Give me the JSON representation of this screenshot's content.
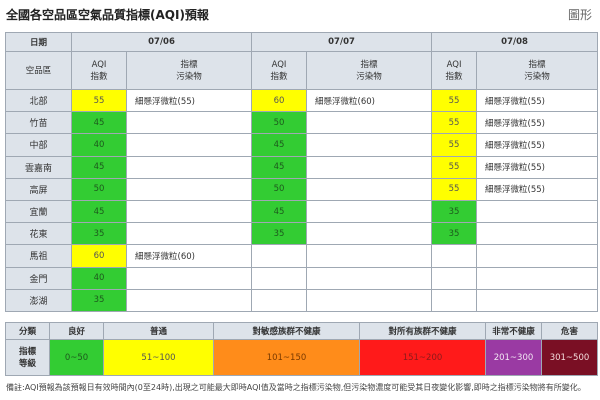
{
  "header": {
    "title": "全國各空品區空氣品質指標(AQI)預報",
    "chart_link": "圖形"
  },
  "table": {
    "date_label": "日期",
    "region_label": "空品區",
    "aqi_header": "AQI\n指數",
    "pollutant_header": "指標\n污染物",
    "dates": [
      "07/06",
      "07/07",
      "07/08"
    ],
    "rows": [
      {
        "region": "北部",
        "days": [
          {
            "aqi": "55",
            "level": "yellow",
            "pollutant": "細懸浮微粒(55)"
          },
          {
            "aqi": "60",
            "level": "yellow",
            "pollutant": "細懸浮微粒(60)"
          },
          {
            "aqi": "55",
            "level": "yellow",
            "pollutant": "細懸浮微粒(55)"
          }
        ]
      },
      {
        "region": "竹苗",
        "days": [
          {
            "aqi": "45",
            "level": "green",
            "pollutant": ""
          },
          {
            "aqi": "50",
            "level": "green",
            "pollutant": ""
          },
          {
            "aqi": "55",
            "level": "yellow",
            "pollutant": "細懸浮微粒(55)"
          }
        ]
      },
      {
        "region": "中部",
        "days": [
          {
            "aqi": "40",
            "level": "green",
            "pollutant": ""
          },
          {
            "aqi": "45",
            "level": "green",
            "pollutant": ""
          },
          {
            "aqi": "55",
            "level": "yellow",
            "pollutant": "細懸浮微粒(55)"
          }
        ]
      },
      {
        "region": "雲嘉南",
        "days": [
          {
            "aqi": "45",
            "level": "green",
            "pollutant": ""
          },
          {
            "aqi": "45",
            "level": "green",
            "pollutant": ""
          },
          {
            "aqi": "55",
            "level": "yellow",
            "pollutant": "細懸浮微粒(55)"
          }
        ]
      },
      {
        "region": "高屏",
        "days": [
          {
            "aqi": "50",
            "level": "green",
            "pollutant": ""
          },
          {
            "aqi": "50",
            "level": "green",
            "pollutant": ""
          },
          {
            "aqi": "55",
            "level": "yellow",
            "pollutant": "細懸浮微粒(55)"
          }
        ]
      },
      {
        "region": "宜蘭",
        "days": [
          {
            "aqi": "45",
            "level": "green",
            "pollutant": ""
          },
          {
            "aqi": "45",
            "level": "green",
            "pollutant": ""
          },
          {
            "aqi": "35",
            "level": "green",
            "pollutant": ""
          }
        ]
      },
      {
        "region": "花東",
        "days": [
          {
            "aqi": "35",
            "level": "green",
            "pollutant": ""
          },
          {
            "aqi": "35",
            "level": "green",
            "pollutant": ""
          },
          {
            "aqi": "35",
            "level": "green",
            "pollutant": ""
          }
        ]
      },
      {
        "region": "馬祖",
        "days": [
          {
            "aqi": "60",
            "level": "yellow",
            "pollutant": "細懸浮微粒(60)"
          },
          {
            "aqi": "",
            "level": "empty",
            "pollutant": ""
          },
          {
            "aqi": "",
            "level": "empty",
            "pollutant": ""
          }
        ]
      },
      {
        "region": "金門",
        "days": [
          {
            "aqi": "40",
            "level": "green",
            "pollutant": ""
          },
          {
            "aqi": "",
            "level": "empty",
            "pollutant": ""
          },
          {
            "aqi": "",
            "level": "empty",
            "pollutant": ""
          }
        ]
      },
      {
        "region": "澎湖",
        "days": [
          {
            "aqi": "35",
            "level": "green",
            "pollutant": ""
          },
          {
            "aqi": "",
            "level": "empty",
            "pollutant": ""
          },
          {
            "aqi": "",
            "level": "empty",
            "pollutant": ""
          }
        ]
      }
    ]
  },
  "legend": {
    "category_label": "分類",
    "index_label": "指標\n等級",
    "levels": [
      {
        "name": "良好",
        "range": "0~50",
        "color": "#33cc33"
      },
      {
        "name": "普通",
        "range": "51~100",
        "color": "#ffff00"
      },
      {
        "name": "對敏感族群不健康",
        "range": "101~150",
        "color": "#ff8c1a"
      },
      {
        "name": "對所有族群不健康",
        "range": "151~200",
        "color": "#ff1a1a"
      },
      {
        "name": "非常不健康",
        "range": "201~300",
        "color": "#9a3aa3"
      },
      {
        "name": "危害",
        "range": "301~500",
        "color": "#7a0f24"
      }
    ]
  },
  "note": "備註:AQI預報為該預報日有效時間內(0至24時),出現之可能最大即時AQI值及當時之指標污染物,但污染物濃度可能受其日夜變化影響,即時之指標污染物將有所變化。"
}
